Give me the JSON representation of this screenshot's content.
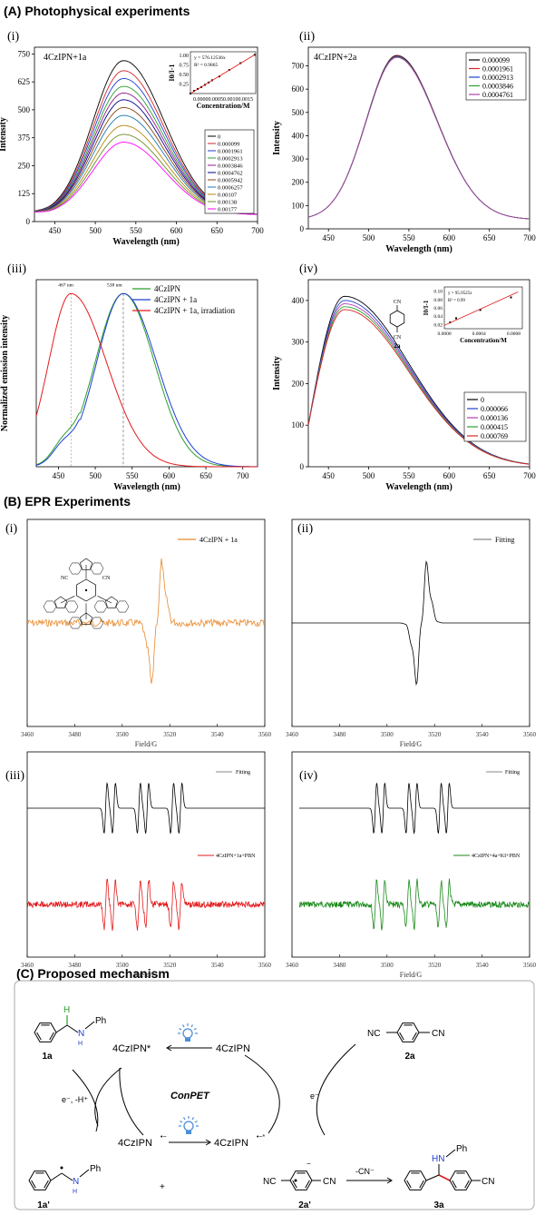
{
  "sections": {
    "a": "(A) Photophysical experiments",
    "b": "(B) EPR Experiments",
    "c": "(C) Proposed mechanism"
  },
  "panels": {
    "a1": "(i)",
    "a2": "(ii)",
    "a3": "(iii)",
    "a4": "(iv)",
    "b1": "(i)",
    "b2": "(ii)",
    "b3": "(iii)",
    "b4": "(iv)"
  },
  "chart_data": [
    {
      "id": "A-i",
      "type": "line",
      "label": "4CzIPN+1a",
      "xlabel": "Wavelength (nm)",
      "ylabel": "Intensity",
      "xlim": [
        425,
        700
      ],
      "ylim": [
        0,
        780
      ],
      "xticks": [
        450,
        500,
        550,
        600,
        650,
        700
      ],
      "yticks": [
        0,
        125,
        250,
        375,
        500,
        625,
        750
      ],
      "peak_x": 535,
      "legend": [
        "0",
        "0.000099",
        "0.0001961",
        "0.0002913",
        "0.0003846",
        "0.0004762",
        "0.0005942",
        "0.0006257",
        "0.00107",
        "0.00138",
        "0.00177"
      ],
      "legend_display": [
        "0",
        "0.000099",
        "0.0001961",
        "0.0002913",
        "0.0003846",
        "0.0004762",
        "0.0005942",
        "0.0006257",
        "0.00107",
        "0.00138",
        "0.00177"
      ],
      "peaks": [
        720,
        675,
        640,
        605,
        575,
        545,
        510,
        475,
        430,
        390,
        355
      ],
      "colors": [
        "#000000",
        "#d62728",
        "#1f3fd6",
        "#2ca02c",
        "#8b1a8b",
        "#00008b",
        "#8b4513",
        "#1f77b4",
        "#b8860b",
        "#6b8e23",
        "#ff00ff"
      ],
      "inset": {
        "xlabel": "Concentration/M",
        "ylabel": "I0/I-1",
        "xticks": [
          "0.0000",
          "0.0005",
          "0.0010",
          "0.0015"
        ],
        "yticks": [
          0.25,
          0.5,
          0.75,
          1.0
        ],
        "equation": "y = 576.12536x",
        "r2": "R² = 0.9865",
        "points": [
          [
            0,
            0.0
          ],
          [
            0.0001,
            0.07
          ],
          [
            0.0002,
            0.12
          ],
          [
            0.0003,
            0.17
          ],
          [
            0.0004,
            0.23
          ],
          [
            0.0005,
            0.29
          ],
          [
            0.0006,
            0.35
          ],
          [
            0.0008,
            0.45
          ],
          [
            0.00107,
            0.62
          ],
          [
            0.00138,
            0.8
          ],
          [
            0.00177,
            1.02
          ]
        ],
        "xlim": [
          0,
          0.0018
        ],
        "ylim": [
          0,
          1.1
        ]
      }
    },
    {
      "id": "A-ii",
      "type": "line",
      "label": "4CzIPN+2a",
      "xlabel": "Wavelength (nm)",
      "ylabel": "Intensity",
      "xlim": [
        425,
        700
      ],
      "ylim": [
        0,
        780
      ],
      "xticks": [
        450,
        500,
        550,
        600,
        650,
        700
      ],
      "yticks": [
        0,
        100,
        200,
        300,
        400,
        500,
        600,
        700
      ],
      "peak_x": 535,
      "legend": [
        "0.000099",
        "0.0001961",
        "0.0002913",
        "0.0003846",
        "0.0004761"
      ],
      "peaks": [
        745,
        742,
        740,
        738,
        736
      ],
      "colors": [
        "#000000",
        "#d62728",
        "#1f3fd6",
        "#2ca02c",
        "#b03fb0"
      ]
    },
    {
      "id": "A-iii",
      "type": "line",
      "xlabel": "Wavelength (nm)",
      "ylabel": "Normalized emission intensity",
      "xlim": [
        420,
        720
      ],
      "ylim": [
        0,
        1.08
      ],
      "xticks": [
        450,
        500,
        550,
        600,
        650,
        700
      ],
      "annotations": [
        "467 nm",
        "538 nm"
      ],
      "legend": [
        "4CzIPN",
        "4CzIPN + 1a",
        "4CzIPN + 1a, irradiation"
      ],
      "colors": [
        "#2ca02c",
        "#1f3fd6",
        "#e31a1c"
      ],
      "peak_x": [
        538,
        538,
        467
      ]
    },
    {
      "id": "A-iv",
      "type": "line",
      "xlabel": "Wavelength (nm)",
      "ylabel": "Intensity",
      "xlim": [
        425,
        700
      ],
      "ylim": [
        0,
        450
      ],
      "xticks": [
        450,
        500,
        550,
        600,
        650,
        700
      ],
      "yticks": [
        0,
        100,
        200,
        300,
        400
      ],
      "peak_x": 470,
      "legend": [
        "0",
        "0.000066",
        "0.000136",
        "0.000415",
        "0.000769"
      ],
      "peaks": [
        410,
        400,
        392,
        385,
        378
      ],
      "colors": [
        "#000000",
        "#1f3fd6",
        "#b03fb0",
        "#2ca02c",
        "#d62728"
      ],
      "compound": "2a",
      "inset": {
        "xlabel": "Concentration/M",
        "ylabel": "I0/I-1",
        "xticks": [
          "0.0000",
          "0.0004",
          "0.0008"
        ],
        "yticks": [
          0.02,
          0.04,
          0.06,
          0.08,
          0.1
        ],
        "equation": "y = 95.9525x",
        "r2": "R² = 0.99",
        "xlim": [
          0,
          0.0009
        ],
        "ylim": [
          0.01,
          0.11
        ],
        "points": [
          [
            6.6e-05,
            0.025
          ],
          [
            0.000136,
            0.035
          ],
          [
            0.000415,
            0.055
          ],
          [
            0.000769,
            0.085
          ]
        ]
      }
    },
    {
      "id": "B-i",
      "type": "line",
      "label": "4CzIPN + 1a",
      "xlabel": "Field/G",
      "xlim": [
        3460,
        3560
      ],
      "xticks": [
        3460,
        3480,
        3500,
        3520,
        3540,
        3560
      ],
      "color": "#e8892b"
    },
    {
      "id": "B-ii",
      "type": "line",
      "label": "Fitting",
      "xlabel": "Field/G",
      "xlim": [
        3460,
        3560
      ],
      "xticks": [
        3460,
        3480,
        3500,
        3520,
        3540,
        3560
      ],
      "color": "#000000"
    },
    {
      "id": "B-iii",
      "type": "line",
      "labels": [
        "Fitting",
        "4CzIPN+1a+PBN"
      ],
      "xlabel": "Field/G",
      "xlim": [
        3460,
        3560
      ],
      "xticks": [
        3460,
        3480,
        3500,
        3520,
        3540,
        3560
      ],
      "colors": [
        "#000000",
        "#e31a1c"
      ]
    },
    {
      "id": "B-iv",
      "type": "line",
      "labels": [
        "Fitting",
        "4CzIPN+4a+KI+PBN"
      ],
      "xlabel": "Field/G",
      "xlim": [
        3460,
        3560
      ],
      "xticks": [
        3460,
        3480,
        3500,
        3520,
        3540,
        3560
      ],
      "colors": [
        "#000000",
        "#1a8a1a"
      ]
    }
  ],
  "mechanism": {
    "center": "ConPET",
    "cz_star": "4CzIPN*",
    "cz": "4CzIPN",
    "cz_radical_anion": "4CzIPN",
    "cz_dianion": "4CzIPN",
    "minus_sup": "•−",
    "dianion_sup": "•−*",
    "label_1a": "1a",
    "label_1a_prime": "1a'",
    "label_2a": "2a",
    "label_2a_prime": "2a'",
    "label_3a": "3a",
    "step_left": "e⁻, -H⁺",
    "step_right": "e⁻",
    "plus": "+",
    "cn_loss": "-CN⁻",
    "nc": "NC",
    "cn": "CN",
    "nh": "N",
    "h": "H",
    "hn": "HN",
    "ph": "Ph"
  },
  "colors": {
    "highlight_h": "#2e9e2e",
    "bulb": "#4a90d9",
    "new_bond": "#e31a1c"
  }
}
